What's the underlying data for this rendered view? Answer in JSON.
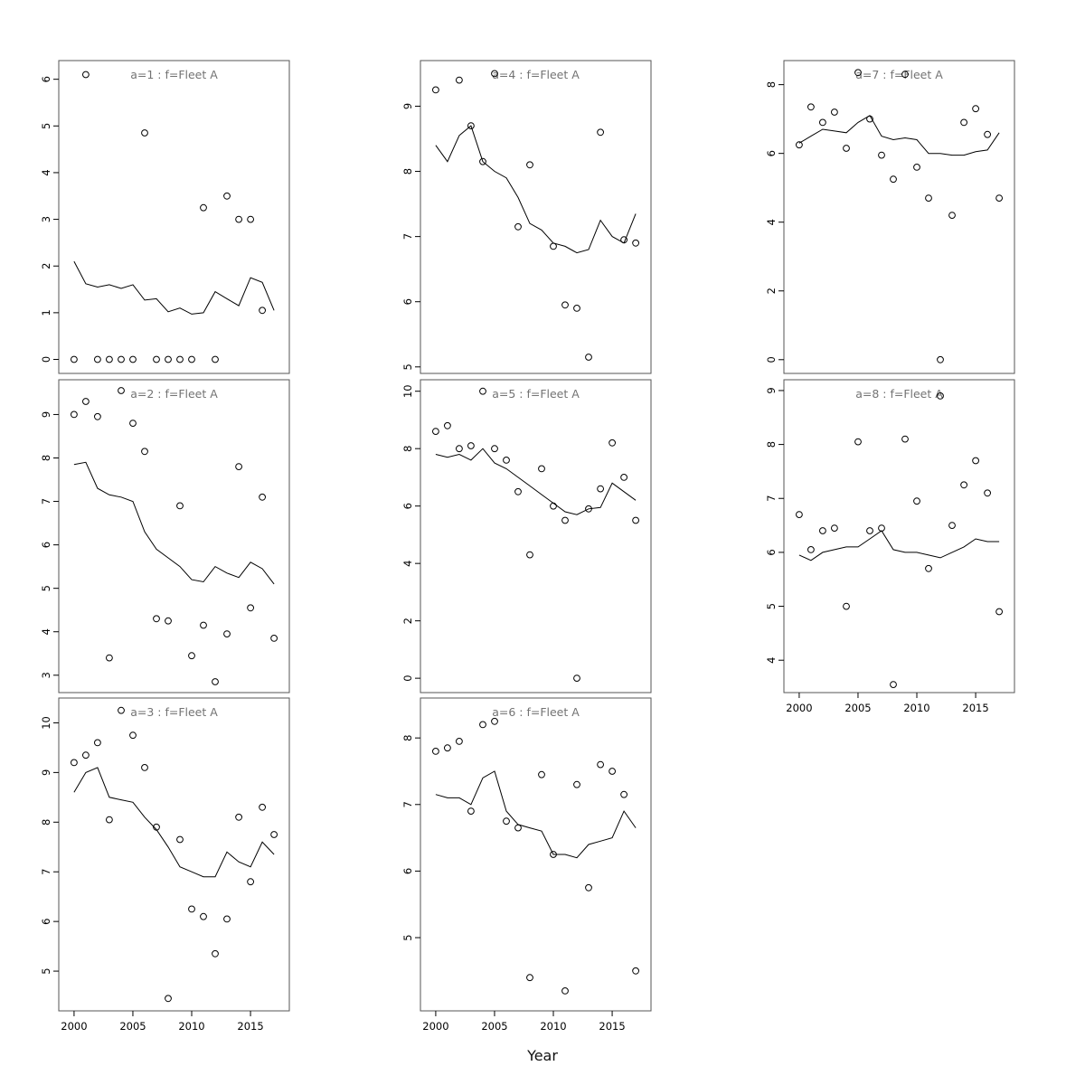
{
  "page": {
    "background": "#ffffff",
    "plot_color": "#000000",
    "box_color": "#555555",
    "title_color": "#737373"
  },
  "chart_data": {
    "type": "scatter",
    "subtype": "lattice-multipanel-scatter-with-trend-line",
    "xlabel": "Year",
    "x_ticks": [
      2000,
      2005,
      2010,
      2015
    ],
    "x_range": [
      1998.7,
      2018.3
    ],
    "line_years_start": 2000,
    "legend_position": "none",
    "grid": "off",
    "panels": [
      {
        "title": "a=1  :  f=Fleet A",
        "col": 0,
        "row": 0,
        "ylim": [
          -0.3,
          6.4
        ],
        "yticks": [
          0,
          1,
          2,
          3,
          4,
          5,
          6
        ],
        "show_x_labels": false,
        "points": [
          [
            2000,
            0
          ],
          [
            2001,
            6.1
          ],
          [
            2002,
            0
          ],
          [
            2003,
            0
          ],
          [
            2004,
            0
          ],
          [
            2005,
            0
          ],
          [
            2006,
            4.85
          ],
          [
            2007,
            0
          ],
          [
            2008,
            0
          ],
          [
            2009,
            0
          ],
          [
            2010,
            0
          ],
          [
            2011,
            3.25
          ],
          [
            2012,
            0
          ],
          [
            2013,
            3.5
          ],
          [
            2014,
            3.0
          ],
          [
            2015,
            3.0
          ],
          [
            2016,
            1.05
          ]
        ],
        "line": [
          2.1,
          1.62,
          1.55,
          1.6,
          1.52,
          1.6,
          1.27,
          1.3,
          1.02,
          1.1,
          0.97,
          1.0,
          1.45,
          1.3,
          1.15,
          1.75,
          1.65,
          1.05
        ]
      },
      {
        "title": "a=2  :  f=Fleet A",
        "col": 0,
        "row": 1,
        "ylim": [
          2.6,
          9.8
        ],
        "yticks": [
          3,
          4,
          5,
          6,
          7,
          8,
          9
        ],
        "show_x_labels": false,
        "points": [
          [
            2000,
            9.0
          ],
          [
            2001,
            9.3
          ],
          [
            2002,
            8.95
          ],
          [
            2003,
            3.4
          ],
          [
            2004,
            9.55
          ],
          [
            2005,
            8.8
          ],
          [
            2006,
            8.15
          ],
          [
            2007,
            4.3
          ],
          [
            2008,
            4.25
          ],
          [
            2009,
            6.9
          ],
          [
            2010,
            3.45
          ],
          [
            2011,
            4.15
          ],
          [
            2012,
            2.85
          ],
          [
            2013,
            3.95
          ],
          [
            2014,
            7.8
          ],
          [
            2015,
            4.55
          ],
          [
            2016,
            7.1
          ],
          [
            2017,
            3.85
          ]
        ],
        "line": [
          7.85,
          7.9,
          7.3,
          7.15,
          7.1,
          7.0,
          6.3,
          5.9,
          5.7,
          5.5,
          5.2,
          5.15,
          5.5,
          5.35,
          5.25,
          5.6,
          5.45,
          5.1
        ]
      },
      {
        "title": "a=3  :  f=Fleet A",
        "col": 0,
        "row": 2,
        "ylim": [
          4.2,
          10.5
        ],
        "yticks": [
          5,
          6,
          7,
          8,
          9,
          10
        ],
        "show_x_labels": true,
        "points": [
          [
            2000,
            9.2
          ],
          [
            2001,
            9.35
          ],
          [
            2002,
            9.6
          ],
          [
            2003,
            8.05
          ],
          [
            2004,
            10.25
          ],
          [
            2005,
            9.75
          ],
          [
            2006,
            9.1
          ],
          [
            2007,
            7.9
          ],
          [
            2008,
            4.45
          ],
          [
            2009,
            7.65
          ],
          [
            2010,
            6.25
          ],
          [
            2011,
            6.1
          ],
          [
            2012,
            5.35
          ],
          [
            2013,
            6.05
          ],
          [
            2014,
            8.1
          ],
          [
            2015,
            6.8
          ],
          [
            2016,
            8.3
          ],
          [
            2017,
            7.75
          ]
        ],
        "line": [
          8.6,
          9.0,
          9.1,
          8.5,
          8.45,
          8.4,
          8.1,
          7.85,
          7.5,
          7.1,
          7.0,
          6.9,
          6.9,
          7.4,
          7.2,
          7.1,
          7.6,
          7.35
        ]
      },
      {
        "title": "a=4  :  f=Fleet A",
        "col": 1,
        "row": 0,
        "ylim": [
          4.9,
          9.7
        ],
        "yticks": [
          5,
          6,
          7,
          8,
          9
        ],
        "show_x_labels": false,
        "points": [
          [
            2000,
            9.25
          ],
          [
            2002,
            9.4
          ],
          [
            2003,
            8.7
          ],
          [
            2004,
            8.15
          ],
          [
            2005,
            9.5
          ],
          [
            2007,
            7.15
          ],
          [
            2008,
            8.1
          ],
          [
            2010,
            6.85
          ],
          [
            2011,
            5.95
          ],
          [
            2012,
            5.9
          ],
          [
            2013,
            5.15
          ],
          [
            2014,
            8.6
          ],
          [
            2016,
            6.95
          ],
          [
            2017,
            6.9
          ]
        ],
        "line": [
          8.4,
          8.15,
          8.55,
          8.7,
          8.15,
          8.0,
          7.9,
          7.6,
          7.2,
          7.1,
          6.9,
          6.85,
          6.75,
          6.8,
          7.25,
          7.0,
          6.9,
          7.35
        ]
      },
      {
        "title": "a=5  :  f=Fleet A",
        "col": 1,
        "row": 1,
        "ylim": [
          -0.5,
          10.4
        ],
        "yticks": [
          0,
          2,
          4,
          6,
          8,
          10
        ],
        "show_x_labels": false,
        "points": [
          [
            2000,
            8.6
          ],
          [
            2001,
            8.8
          ],
          [
            2002,
            8.0
          ],
          [
            2003,
            8.1
          ],
          [
            2004,
            10.0
          ],
          [
            2005,
            8.0
          ],
          [
            2006,
            7.6
          ],
          [
            2007,
            6.5
          ],
          [
            2008,
            4.3
          ],
          [
            2009,
            7.3
          ],
          [
            2010,
            6.0
          ],
          [
            2011,
            5.5
          ],
          [
            2012,
            0.0
          ],
          [
            2013,
            5.9
          ],
          [
            2014,
            6.6
          ],
          [
            2015,
            8.2
          ],
          [
            2016,
            7.0
          ],
          [
            2017,
            5.5
          ]
        ],
        "line": [
          7.8,
          7.7,
          7.8,
          7.6,
          8.0,
          7.5,
          7.3,
          7.0,
          6.7,
          6.4,
          6.1,
          5.8,
          5.7,
          5.9,
          5.95,
          6.8,
          6.5,
          6.2
        ]
      },
      {
        "title": "a=6  :  f=Fleet A",
        "col": 1,
        "row": 2,
        "ylim": [
          3.9,
          8.6
        ],
        "yticks": [
          5,
          6,
          7,
          8
        ],
        "show_x_labels": true,
        "points": [
          [
            2000,
            7.8
          ],
          [
            2001,
            7.85
          ],
          [
            2002,
            7.95
          ],
          [
            2003,
            6.9
          ],
          [
            2004,
            8.2
          ],
          [
            2005,
            8.25
          ],
          [
            2006,
            6.75
          ],
          [
            2007,
            6.65
          ],
          [
            2008,
            4.4
          ],
          [
            2009,
            7.45
          ],
          [
            2010,
            6.25
          ],
          [
            2011,
            4.2
          ],
          [
            2012,
            7.3
          ],
          [
            2013,
            5.75
          ],
          [
            2014,
            7.6
          ],
          [
            2015,
            7.5
          ],
          [
            2016,
            7.15
          ],
          [
            2017,
            4.5
          ]
        ],
        "line": [
          7.15,
          7.1,
          7.1,
          7.0,
          7.4,
          7.5,
          6.9,
          6.7,
          6.65,
          6.6,
          6.25,
          6.25,
          6.2,
          6.4,
          6.45,
          6.5,
          6.9,
          6.65
        ]
      },
      {
        "title": "a=7  :  f=Fleet A",
        "col": 2,
        "row": 0,
        "ylim": [
          -0.4,
          8.7
        ],
        "yticks": [
          0,
          2,
          4,
          6,
          8
        ],
        "show_x_labels": false,
        "points": [
          [
            2000,
            6.25
          ],
          [
            2001,
            7.35
          ],
          [
            2002,
            6.9
          ],
          [
            2003,
            7.2
          ],
          [
            2004,
            6.15
          ],
          [
            2005,
            8.35
          ],
          [
            2006,
            7.0
          ],
          [
            2007,
            5.95
          ],
          [
            2008,
            5.25
          ],
          [
            2009,
            8.3
          ],
          [
            2010,
            5.6
          ],
          [
            2011,
            4.7
          ],
          [
            2012,
            0.0
          ],
          [
            2013,
            4.2
          ],
          [
            2014,
            6.9
          ],
          [
            2015,
            7.3
          ],
          [
            2016,
            6.55
          ],
          [
            2017,
            4.7
          ]
        ],
        "line": [
          6.3,
          6.5,
          6.7,
          6.65,
          6.6,
          6.9,
          7.1,
          6.5,
          6.4,
          6.45,
          6.4,
          6.0,
          6.0,
          5.95,
          5.95,
          6.05,
          6.1,
          6.6
        ]
      },
      {
        "title": "a=8  :  f=Fleet A",
        "col": 2,
        "row": 1,
        "ylim": [
          3.4,
          9.2
        ],
        "yticks": [
          4,
          5,
          6,
          7,
          8,
          9
        ],
        "show_x_labels": true,
        "points": [
          [
            2000,
            6.7
          ],
          [
            2001,
            6.05
          ],
          [
            2002,
            6.4
          ],
          [
            2003,
            6.45
          ],
          [
            2004,
            5.0
          ],
          [
            2005,
            8.05
          ],
          [
            2006,
            6.4
          ],
          [
            2007,
            6.45
          ],
          [
            2008,
            3.55
          ],
          [
            2009,
            8.1
          ],
          [
            2010,
            6.95
          ],
          [
            2011,
            5.7
          ],
          [
            2012,
            8.9
          ],
          [
            2013,
            6.5
          ],
          [
            2014,
            7.25
          ],
          [
            2015,
            7.7
          ],
          [
            2016,
            7.1
          ],
          [
            2017,
            4.9
          ]
        ],
        "line": [
          5.95,
          5.85,
          6.0,
          6.05,
          6.1,
          6.1,
          6.25,
          6.4,
          6.05,
          6.0,
          6.0,
          5.95,
          5.9,
          6.0,
          6.1,
          6.25,
          6.2,
          6.2
        ]
      }
    ]
  }
}
